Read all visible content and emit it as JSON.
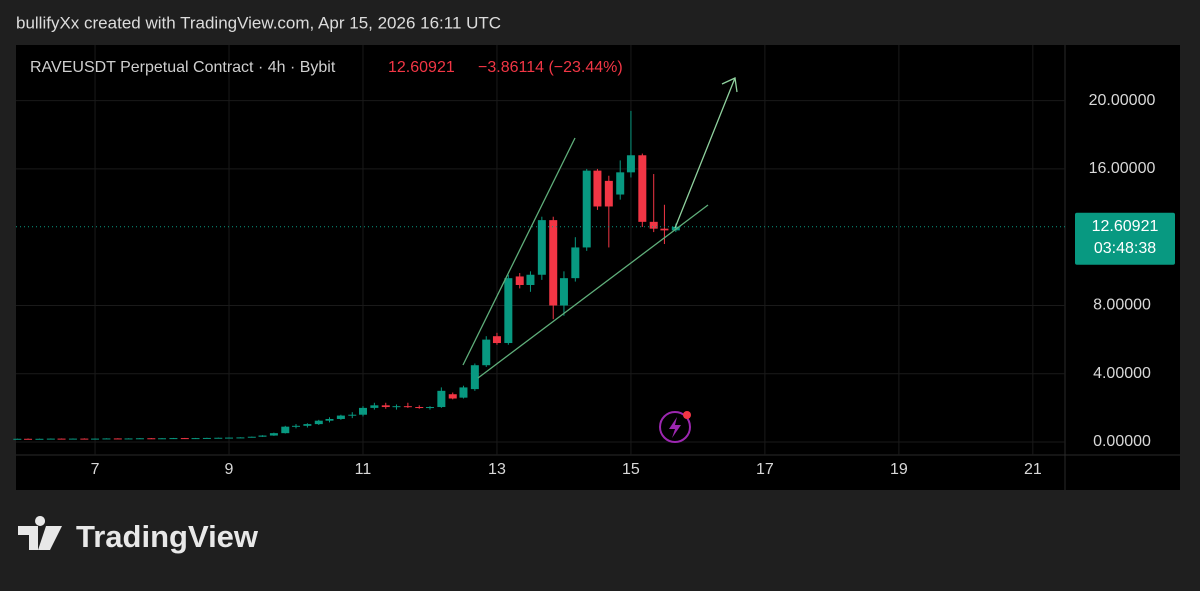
{
  "header": {
    "credit": "bullifyXx created with TradingView.com, Apr 15, 2026 16:11 UTC"
  },
  "chart_data": {
    "type": "candlestick",
    "symbol": "RAVEUSDT Perpetual Contract · 4h · Bybit",
    "last_price": 12.60921,
    "change": "−3.86114 (−23.44%)",
    "countdown": "03:48:38",
    "up_color": "#089981",
    "down_color": "#f23645",
    "x": [
      5.84,
      6.0,
      6.17,
      6.34,
      6.5,
      6.67,
      6.84,
      7.0,
      7.17,
      7.34,
      7.5,
      7.67,
      7.84,
      8.0,
      8.17,
      8.34,
      8.5,
      8.67,
      8.84,
      9.0,
      9.17,
      9.34,
      9.5,
      9.67,
      9.84,
      10.0,
      10.17,
      10.34,
      10.5,
      10.67,
      10.84,
      11.0,
      11.17,
      11.34,
      11.5,
      11.67,
      11.84,
      12.0,
      12.17,
      12.34,
      12.5,
      12.67,
      12.84,
      13.0,
      13.17,
      13.34,
      13.5,
      13.67,
      13.84,
      14.0,
      14.17,
      14.34,
      14.5,
      14.67,
      14.84,
      15.0,
      15.17,
      15.34,
      15.5,
      15.67
    ],
    "open": [
      0.18,
      0.19,
      0.18,
      0.19,
      0.2,
      0.19,
      0.2,
      0.19,
      0.2,
      0.21,
      0.2,
      0.21,
      0.22,
      0.21,
      0.22,
      0.23,
      0.22,
      0.23,
      0.24,
      0.25,
      0.26,
      0.27,
      0.31,
      0.38,
      0.52,
      0.9,
      0.95,
      1.05,
      1.25,
      1.35,
      1.55,
      1.6,
      2.0,
      2.15,
      2.05,
      2.1,
      2.05,
      2.0,
      2.05,
      2.8,
      2.6,
      3.1,
      4.5,
      6.2,
      5.8,
      9.7,
      9.2,
      9.8,
      13.0,
      8.0,
      9.6,
      11.4,
      15.9,
      15.3,
      14.5,
      15.8,
      16.8,
      12.9,
      12.5,
      12.4
    ],
    "high": [
      0.2,
      0.21,
      0.2,
      0.21,
      0.21,
      0.21,
      0.22,
      0.21,
      0.22,
      0.22,
      0.22,
      0.23,
      0.23,
      0.23,
      0.24,
      0.24,
      0.24,
      0.25,
      0.26,
      0.27,
      0.28,
      0.32,
      0.4,
      0.55,
      0.95,
      1.05,
      1.1,
      1.3,
      1.45,
      1.6,
      1.75,
      2.1,
      2.3,
      2.3,
      2.2,
      2.3,
      2.15,
      2.1,
      3.2,
      2.9,
      3.3,
      4.6,
      6.2,
      6.4,
      9.8,
      9.9,
      10.0,
      13.2,
      13.2,
      10.0,
      12.0,
      16.0,
      16.0,
      15.6,
      16.5,
      19.4,
      16.9,
      15.7,
      13.9,
      12.8
    ],
    "low": [
      0.17,
      0.18,
      0.17,
      0.18,
      0.18,
      0.18,
      0.19,
      0.18,
      0.19,
      0.19,
      0.19,
      0.2,
      0.2,
      0.2,
      0.21,
      0.21,
      0.21,
      0.22,
      0.23,
      0.24,
      0.25,
      0.26,
      0.3,
      0.36,
      0.5,
      0.8,
      0.85,
      1.0,
      1.15,
      1.3,
      1.4,
      1.5,
      1.9,
      1.95,
      1.9,
      2.0,
      1.95,
      1.9,
      2.0,
      2.5,
      2.55,
      3.0,
      4.4,
      5.7,
      5.7,
      9.0,
      8.8,
      9.5,
      7.2,
      7.4,
      9.4,
      11.2,
      13.6,
      11.4,
      14.2,
      15.5,
      12.6,
      12.3,
      11.6,
      12.3
    ],
    "close": [
      0.19,
      0.18,
      0.19,
      0.2,
      0.19,
      0.2,
      0.19,
      0.2,
      0.21,
      0.2,
      0.21,
      0.22,
      0.21,
      0.22,
      0.23,
      0.22,
      0.23,
      0.24,
      0.25,
      0.26,
      0.27,
      0.31,
      0.38,
      0.52,
      0.9,
      0.95,
      1.05,
      1.25,
      1.35,
      1.55,
      1.6,
      2.0,
      2.15,
      2.05,
      2.1,
      2.05,
      2.0,
      2.05,
      3.0,
      2.55,
      3.2,
      4.5,
      6.0,
      5.8,
      9.6,
      9.2,
      9.8,
      13.0,
      8.0,
      9.6,
      11.4,
      15.9,
      13.8,
      13.8,
      15.8,
      16.8,
      12.9,
      12.5,
      12.4,
      12.60921
    ],
    "xlim": [
      5.82,
      21.48
    ],
    "xticks": [
      7,
      9,
      11,
      13,
      15,
      17,
      19,
      21
    ],
    "ylim": [
      -0.76,
      23.26
    ],
    "yticks": [
      {
        "value": 0,
        "label": "0.00000"
      },
      {
        "value": 4,
        "label": "4.00000"
      },
      {
        "value": 8,
        "label": "8.00000"
      },
      {
        "value": 16,
        "label": "16.00000"
      },
      {
        "value": 20,
        "label": "20.00000"
      }
    ],
    "grid": true
  },
  "footer": {
    "brand": "TradingView"
  }
}
